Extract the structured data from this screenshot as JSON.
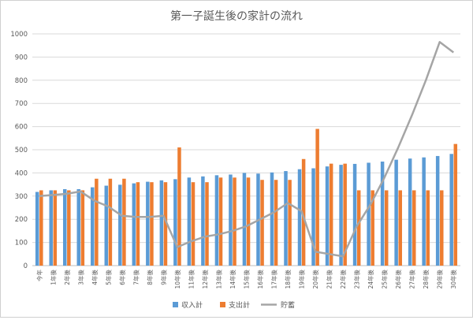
{
  "chart_data": {
    "type": "bar",
    "title": "第一子誕生後の家計の流れ",
    "xlabel": "",
    "ylabel": "",
    "ylim": [
      0,
      1000
    ],
    "yticks": [
      0,
      100,
      200,
      300,
      400,
      500,
      600,
      700,
      800,
      900,
      1000
    ],
    "grid": true,
    "legend_position": "bottom",
    "categories": [
      "今年",
      "1年後",
      "2年後",
      "3年後",
      "4年後",
      "5年後",
      "6年後",
      "7年後",
      "8年後",
      "9年後",
      "10年後",
      "11年後",
      "12年後",
      "13年後",
      "14年後",
      "15年後",
      "16年後",
      "17年後",
      "18年後",
      "19年後",
      "20年後",
      "21年後",
      "22年後",
      "23年後",
      "24年後",
      "25年後",
      "26年後",
      "27年後",
      "28年後",
      "29年後",
      "30年後"
    ],
    "series": [
      {
        "name": "収入計",
        "type": "bar",
        "color": "#5b9bd5",
        "values": [
          318,
          325,
          330,
          330,
          338,
          345,
          349,
          355,
          362,
          368,
          373,
          380,
          385,
          390,
          393,
          400,
          397,
          402,
          408,
          416,
          420,
          428,
          435,
          439,
          444,
          449,
          457,
          462,
          467,
          473,
          482
        ]
      },
      {
        "name": "支出計",
        "type": "bar",
        "color": "#ed7d31",
        "values": [
          325,
          325,
          325,
          325,
          375,
          375,
          375,
          360,
          360,
          360,
          510,
          360,
          360,
          380,
          380,
          380,
          370,
          370,
          370,
          460,
          590,
          440,
          440,
          325,
          325,
          325,
          325,
          325,
          325,
          325,
          525
        ]
      },
      {
        "name": "貯蓄",
        "type": "line",
        "color": "#a5a5a5",
        "values": [
          300,
          305,
          310,
          320,
          280,
          255,
          215,
          210,
          210,
          215,
          80,
          105,
          125,
          135,
          150,
          170,
          200,
          230,
          270,
          235,
          60,
          50,
          40,
          170,
          265,
          380,
          510,
          650,
          800,
          965,
          920
        ]
      }
    ]
  }
}
